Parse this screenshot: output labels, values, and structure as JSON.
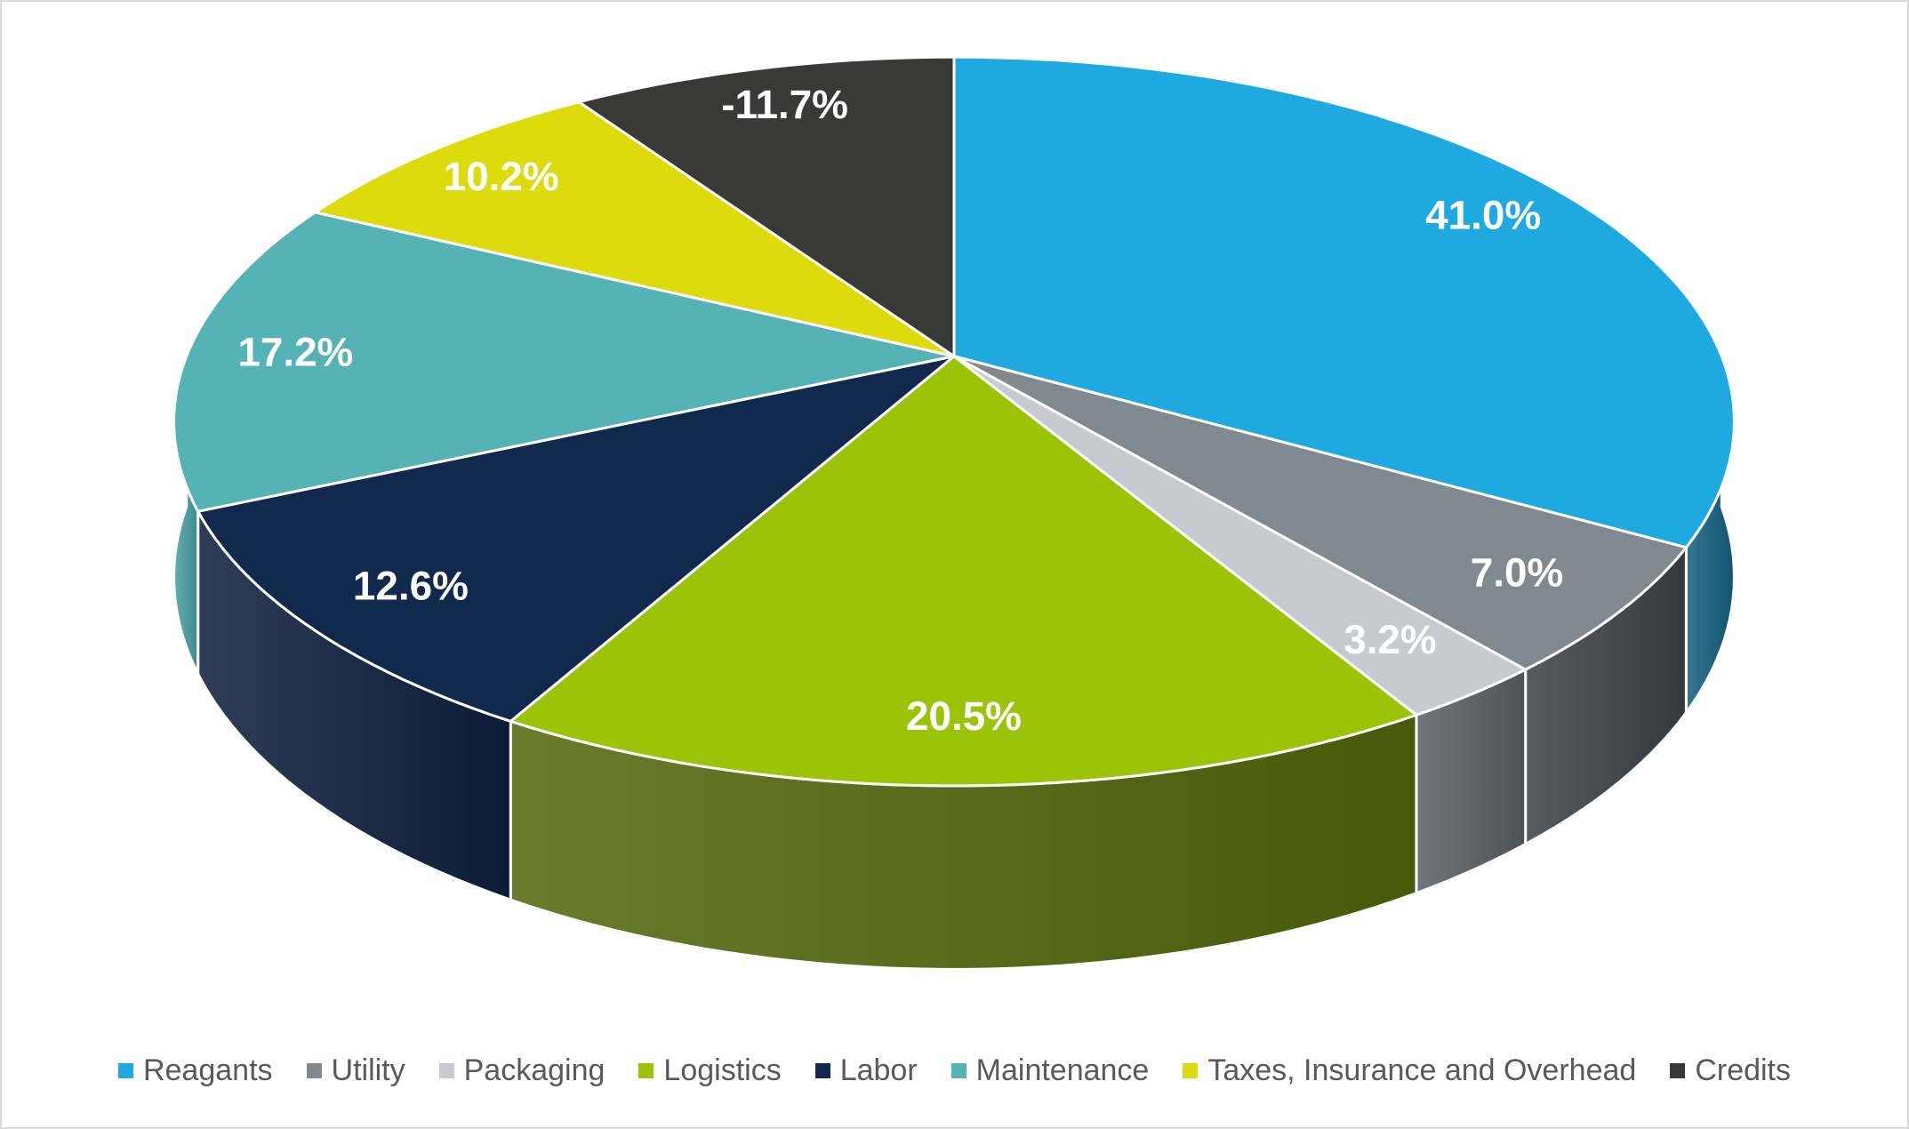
{
  "chart_data": {
    "type": "pie",
    "style": "3d-perspective",
    "title": "",
    "legend_position": "bottom",
    "categories": [
      "Reagants",
      "Utility",
      "Packaging",
      "Logistics",
      "Labor",
      "Maintenance",
      "Taxes, Insurance and Overhead",
      "Credits"
    ],
    "values": [
      41.0,
      7.0,
      3.2,
      20.5,
      12.6,
      17.2,
      10.2,
      -11.7
    ],
    "percent_labels": [
      "41.0%",
      "7.0%",
      "3.2%",
      "20.5%",
      "12.6%",
      "17.2%",
      "10.2%",
      "-11.7%"
    ],
    "colors": [
      "#1ea9e1",
      "#7f898f",
      "#c5cbd1",
      "#9bc408",
      "#12294e",
      "#55b2b5",
      "#dedb0c",
      "#393937"
    ],
    "wall_colors": [
      "#15607f",
      "#3a4146",
      "#575f65",
      "#52650a",
      "#0c1f3d",
      "#48a0a3",
      "#8d8b06",
      "#232321"
    ],
    "label_color": "#ffffff",
    "start_angle_deg": 0,
    "direction": "clockwise",
    "label_radius": 0.86
  },
  "legend": {
    "text_color": "#595959",
    "items": [
      {
        "label": "Reagants",
        "color": "#1ea9e1"
      },
      {
        "label": "Utility",
        "color": "#7f898f"
      },
      {
        "label": "Packaging",
        "color": "#c5cbd1"
      },
      {
        "label": "Logistics",
        "color": "#9bc408"
      },
      {
        "label": "Labor",
        "color": "#12294e"
      },
      {
        "label": "Maintenance",
        "color": "#55b2b5"
      },
      {
        "label": "Taxes, Insurance and Overhead",
        "color": "#dedb0c"
      },
      {
        "label": "Credits",
        "color": "#393937"
      }
    ]
  },
  "frame": {
    "background": "#ffffff",
    "border_color": "#d9d9d9"
  }
}
